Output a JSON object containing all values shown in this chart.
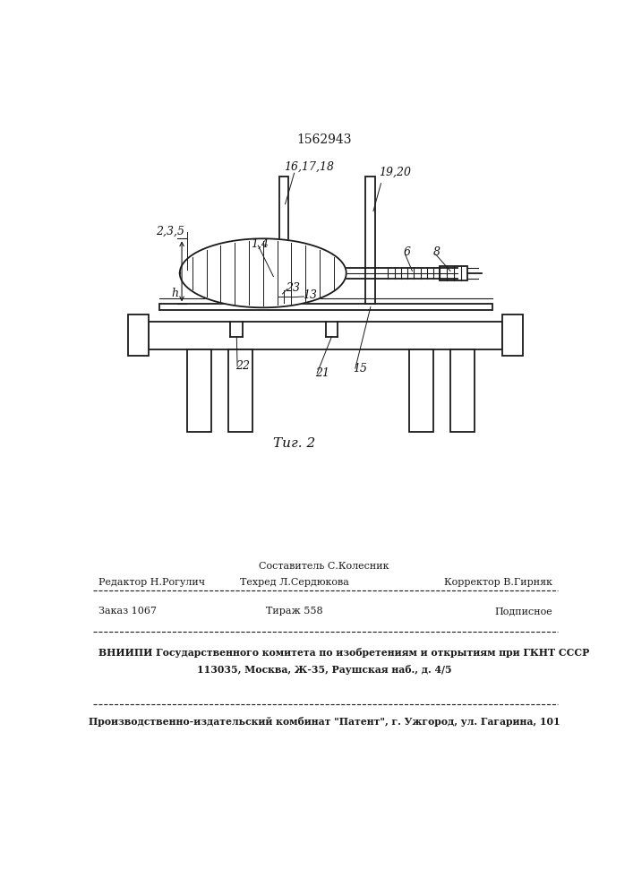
{
  "patent_number": "1562943",
  "fig_label": "Τиг. 2",
  "background_color": "#ffffff",
  "line_color": "#1a1a1a",
  "footer_line1_center_top": "Составитель С.Колесник",
  "footer_line1_left": "Редактор Н.Рогулич",
  "footer_line1_center": "Техред Л.Сердюкова",
  "footer_line1_right": "Корректор В.Гирняк",
  "footer_line2_left": "Заказ 1067",
  "footer_line2_center": "Тираж 558",
  "footer_line2_right": "Подписное",
  "footer_line3": "ВНИИПИ Государственного комитета по изобретениям и открытиям при ГКНТ СССР",
  "footer_line4": "113035, Москва, Ж-35, Раушская наб., д. 4/5",
  "footer_line5": "Производственно-издательский комбинат \"Патент\", г. Ужгород, ул. Гагарина, 101"
}
